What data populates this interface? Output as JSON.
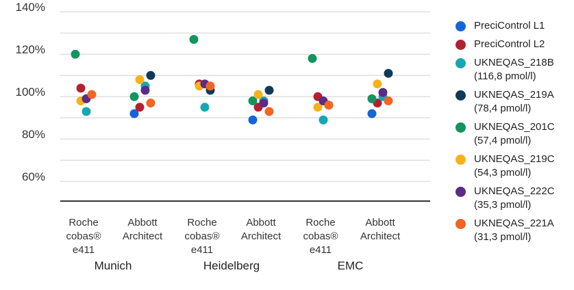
{
  "chart_data": {
    "type": "scatter",
    "y_ticks": [
      "140%",
      "120%",
      "100%",
      "80%",
      "60%"
    ],
    "ylim": [
      54,
      145
    ],
    "grid": true,
    "legend_position": "right",
    "categories": [
      {
        "line1": "Roche",
        "line2": "cobas®",
        "line3": "e411"
      },
      {
        "line1": "Abbott",
        "line2": "Architect",
        "line3": ""
      },
      {
        "line1": "Roche",
        "line2": "cobas®",
        "line3": "e411"
      },
      {
        "line1": "Abbott",
        "line2": "Architect",
        "line3": ""
      },
      {
        "line1": "Roche",
        "line2": "cobas®",
        "line3": "e411"
      },
      {
        "line1": "Abbott",
        "line2": "Architect",
        "line3": ""
      }
    ],
    "groups": [
      "Munich",
      "Heidelberg",
      "EMC"
    ],
    "series": [
      {
        "name": "PreciControl L1",
        "sub": "",
        "color": "#1565d8",
        "values": [
          null,
          92,
          null,
          89,
          null,
          92
        ]
      },
      {
        "name": "PreciControl L2",
        "sub": "",
        "color": "#b3202f",
        "values": [
          104,
          95,
          106,
          95,
          100,
          97
        ]
      },
      {
        "name": "UKNEQAS_218B",
        "sub": "(116,8 pmol/l)",
        "color": "#16a7b3",
        "values": [
          93,
          105,
          95,
          98,
          89,
          100
        ]
      },
      {
        "name": "UKNEQAS_219A",
        "sub": "(78,4 pmol/l)",
        "color": "#113a57",
        "values": [
          null,
          110,
          103,
          103,
          96,
          111
        ]
      },
      {
        "name": "UKNEQAS_201C",
        "sub": "(57,4 pmol/l)",
        "color": "#139460",
        "values": [
          120,
          100,
          127,
          98,
          118,
          99
        ]
      },
      {
        "name": "UKNEQAS_219C",
        "sub": "(54,3 pmol/l)",
        "color": "#f7b21b",
        "values": [
          98,
          108,
          105,
          101,
          95,
          106
        ]
      },
      {
        "name": "UKNEQAS_222C",
        "sub": "(35,3 pmol/l)",
        "color": "#5b2b86",
        "values": [
          99,
          103,
          106,
          97,
          98,
          102
        ]
      },
      {
        "name": "UKNEQAS_221A",
        "sub": "(31,3 pmol/l)",
        "color": "#f26522",
        "values": [
          101,
          97,
          105,
          93,
          96,
          98
        ]
      }
    ]
  }
}
